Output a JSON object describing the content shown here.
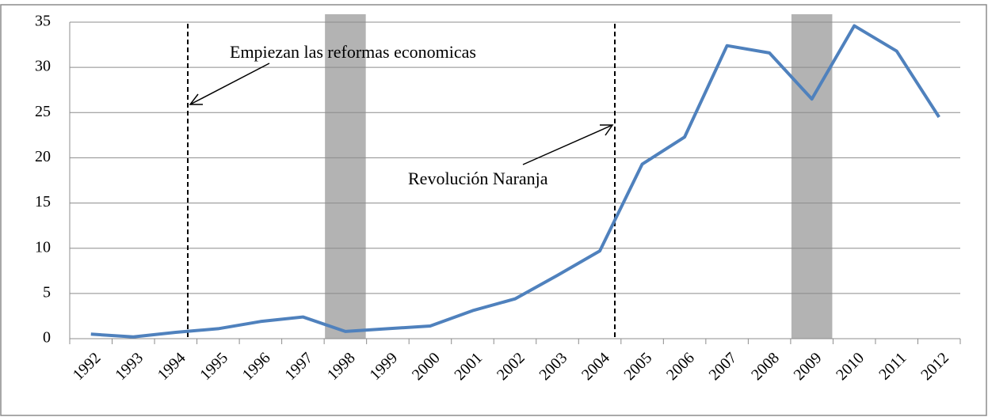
{
  "chart_data": {
    "type": "line",
    "categories": [
      "1992",
      "1993",
      "1994",
      "1995",
      "1996",
      "1997",
      "1998",
      "1999",
      "2000",
      "2001",
      "2002",
      "2003",
      "2004",
      "2005",
      "2006",
      "2007",
      "2008",
      "2009",
      "2010",
      "2011",
      "2012"
    ],
    "series": [
      {
        "color": "#4f81bd",
        "values": [
          0.5,
          0.2,
          0.7,
          1.1,
          1.9,
          2.4,
          0.8,
          1.1,
          1.4,
          3.1,
          4.4,
          7.0,
          9.7,
          19.3,
          22.3,
          32.4,
          31.6,
          26.5,
          34.6,
          31.8,
          24.5
        ]
      }
    ],
    "ylim": [
      0,
      35
    ],
    "yticks": [
      0,
      5,
      10,
      15,
      20,
      25,
      30,
      35
    ],
    "grid": true,
    "shaded_categories": [
      "1998",
      "2009"
    ],
    "shade_color": "#b3b3b3",
    "annotations": [
      {
        "text": "Empiezan las reformas economicas"
      },
      {
        "text": "Revolución Naranja"
      }
    ]
  }
}
